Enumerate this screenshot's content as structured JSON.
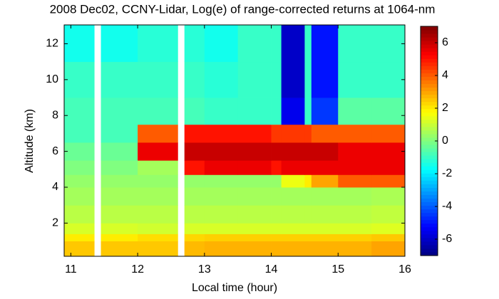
{
  "chart_data": {
    "type": "heatmap",
    "title": "2008 Dec02, CCNY-Lidar, Log(e) of range-corrected returns at 1064-nm",
    "x_label": "Local time (hour)",
    "y_label": "Altitude (km)",
    "x_edges": [
      10.9,
      11.35,
      11.45,
      12.0,
      12.6,
      12.7,
      13.0,
      13.5,
      14.0,
      14.15,
      14.5,
      14.6,
      15.0,
      15.5,
      16.0
    ],
    "y_edges": [
      0.15,
      1,
      1.4,
      2,
      3,
      4,
      4.7,
      5.5,
      6.5,
      7.5,
      9,
      11,
      13.05
    ],
    "z": [
      [
        2.5,
        null,
        2.5,
        2.5,
        null,
        2.7,
        2.8,
        2.8,
        2.8,
        2.8,
        2.8,
        2.8,
        2.8,
        3
      ],
      [
        2,
        null,
        2,
        2.2,
        null,
        2.3,
        2.4,
        2.4,
        2.4,
        2.4,
        2.4,
        2.4,
        2.4,
        2.5
      ],
      [
        1.2,
        null,
        1.2,
        1.1,
        null,
        1.2,
        1.2,
        1.2,
        1.2,
        1.2,
        1.2,
        1.2,
        1.2,
        1.3
      ],
      [
        0.8,
        null,
        0.8,
        0.8,
        null,
        0.8,
        0.8,
        0.8,
        0.8,
        0.8,
        0.8,
        0.8,
        0.8,
        0.9
      ],
      [
        0.5,
        null,
        0.5,
        0.5,
        null,
        0.5,
        0.5,
        0.5,
        0.5,
        0.5,
        0.5,
        0.5,
        0.5,
        0.6
      ],
      [
        0.3,
        null,
        0.3,
        0.3,
        null,
        0.3,
        0.3,
        0.3,
        0.3,
        1.5,
        2,
        3,
        4,
        4
      ],
      [
        0,
        null,
        0,
        0.5,
        null,
        5,
        5.5,
        5.5,
        5,
        5.5,
        5.5,
        5.5,
        5.5,
        5.5
      ],
      [
        -0.3,
        null,
        -0.3,
        5.5,
        null,
        6,
        6,
        6,
        6,
        6,
        6,
        6,
        5.5,
        5.5
      ],
      [
        -0.8,
        null,
        -0.8,
        4,
        null,
        5,
        5,
        5,
        4.5,
        4.5,
        4.5,
        4,
        4,
        4
      ],
      [
        -0.8,
        null,
        -0.8,
        -0.8,
        null,
        -0.8,
        -1,
        -1,
        -1,
        -5.5,
        -1,
        -4.5,
        -0.5,
        -0.5
      ],
      [
        -1,
        null,
        -1,
        -1,
        null,
        -1,
        -1.2,
        -1,
        -1,
        -6,
        -1,
        -5,
        -1,
        -1
      ],
      [
        -1.5,
        null,
        -1.5,
        -1.2,
        null,
        -1.2,
        -1.5,
        -1,
        -1,
        -6,
        -1,
        -5,
        -1,
        -1
      ]
    ],
    "xlim": [
      10.9,
      16
    ],
    "ylim": [
      0.15,
      13.05
    ],
    "xticks": [
      11,
      12,
      13,
      14,
      15,
      16
    ],
    "yticks": [
      2,
      4,
      6,
      8,
      10,
      12
    ],
    "clim": [
      -7,
      7
    ],
    "cticks": [
      -6,
      -4,
      -2,
      0,
      2,
      4,
      6
    ],
    "colormap": "jet"
  }
}
